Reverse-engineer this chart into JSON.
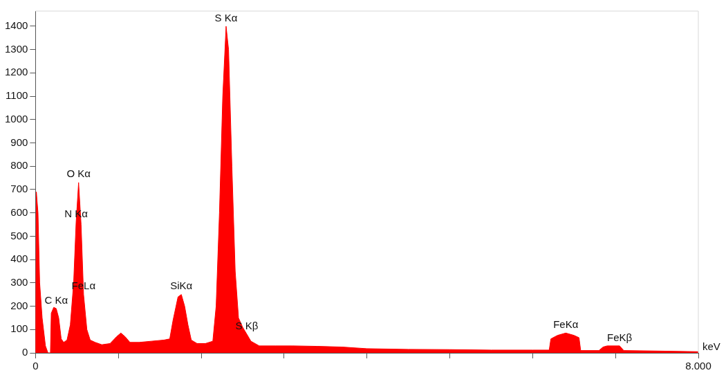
{
  "chart_data": {
    "type": "area",
    "xlabel": "keV",
    "x": [
      0,
      0.01,
      0.03,
      0.05,
      0.08,
      0.12,
      0.15,
      0.18,
      0.19,
      0.22,
      0.25,
      0.28,
      0.31,
      0.34,
      0.38,
      0.42,
      0.46,
      0.49,
      0.52,
      0.55,
      0.58,
      0.62,
      0.66,
      0.72,
      0.8,
      0.9,
      0.98,
      1.03,
      1.08,
      1.14,
      1.25,
      1.4,
      1.55,
      1.62,
      1.66,
      1.72,
      1.76,
      1.8,
      1.84,
      1.88,
      1.95,
      2.05,
      2.14,
      2.18,
      2.22,
      2.26,
      2.3,
      2.33,
      2.37,
      2.41,
      2.45,
      2.5,
      2.55,
      2.6,
      2.7,
      2.9,
      3.1,
      3.4,
      3.7,
      4.0,
      4.5,
      5.0,
      5.5,
      6.0,
      6.2,
      6.22,
      6.3,
      6.4,
      6.5,
      6.56,
      6.58,
      6.8,
      6.85,
      6.9,
      7.05,
      7.1,
      7.5,
      8.0
    ],
    "series": [
      {
        "color": "#ff0000",
        "values": [
          0,
          690,
          600,
          300,
          150,
          30,
          0,
          0,
          170,
          195,
          190,
          150,
          60,
          45,
          55,
          120,
          300,
          560,
          730,
          550,
          250,
          100,
          55,
          45,
          35,
          40,
          70,
          85,
          70,
          45,
          45,
          50,
          55,
          60,
          140,
          240,
          250,
          200,
          120,
          55,
          40,
          40,
          50,
          200,
          600,
          1100,
          1400,
          1300,
          800,
          350,
          150,
          110,
          80,
          50,
          30,
          30,
          30,
          28,
          25,
          18,
          15,
          14,
          12,
          12,
          12,
          60,
          75,
          85,
          75,
          65,
          10,
          10,
          25,
          30,
          30,
          10,
          8,
          5
        ]
      }
    ],
    "xlim": [
      0,
      8
    ],
    "xticks": [
      {
        "value": 0,
        "label": "0"
      },
      {
        "value": 1,
        "label": null
      },
      {
        "value": 2,
        "label": null
      },
      {
        "value": 3,
        "label": null
      },
      {
        "value": 4,
        "label": null
      },
      {
        "value": 5,
        "label": null
      },
      {
        "value": 6,
        "label": null
      },
      {
        "value": 7,
        "label": null
      },
      {
        "value": 8,
        "label": "8.000"
      }
    ],
    "ylim": [
      0,
      1465
    ],
    "yticks": [
      0,
      100,
      200,
      300,
      400,
      500,
      600,
      700,
      800,
      900,
      1000,
      1100,
      1200,
      1300,
      1400
    ],
    "annotations": [
      {
        "text": "S Kα",
        "x": 2.3,
        "y": 1400
      },
      {
        "text": "O Kα",
        "x": 0.52,
        "y": 730
      },
      {
        "text": "N Kα",
        "x": 0.49,
        "y": 560
      },
      {
        "text": "C Kα",
        "x": 0.25,
        "y": 190
      },
      {
        "text": "FeLα",
        "x": 0.58,
        "y": 250
      },
      {
        "text": "SiKα",
        "x": 1.76,
        "y": 250
      },
      {
        "text": "S Kβ",
        "x": 2.55,
        "y": 80
      },
      {
        "text": "FeKα",
        "x": 6.4,
        "y": 85
      },
      {
        "text": "FeKβ",
        "x": 7.05,
        "y": 30
      }
    ]
  }
}
